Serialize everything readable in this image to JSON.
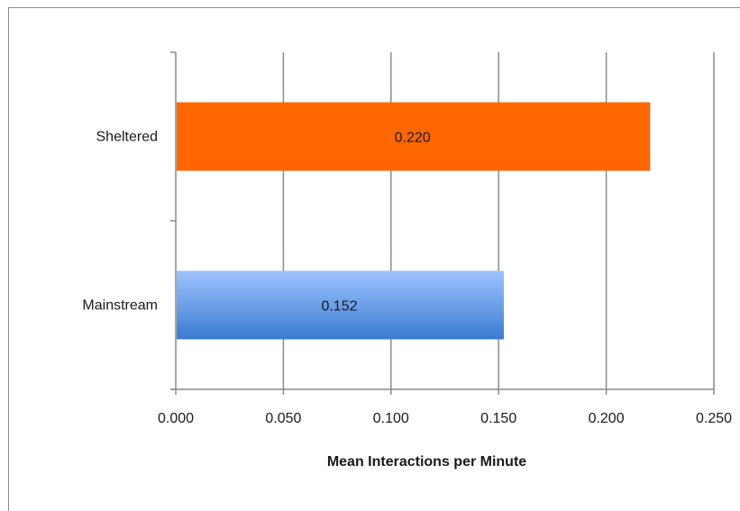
{
  "chart_data": {
    "type": "bar",
    "orientation": "horizontal",
    "categories": [
      "Sheltered",
      "Mainstream"
    ],
    "values": [
      0.22,
      0.152
    ],
    "data_labels": [
      "0.220",
      "0.152"
    ],
    "xlabel": "Mean Interactions per Minute",
    "ylabel": "",
    "xlim": [
      0,
      0.25
    ],
    "x_ticks": [
      "0.000",
      "0.050",
      "0.100",
      "0.150",
      "0.200",
      "0.250"
    ],
    "grid": "vertical",
    "legend": "none",
    "colors": {
      "Sheltered": "#ff6600",
      "Mainstream_top": "#9ec4ff",
      "Mainstream_bottom": "#3a7bd0",
      "grid": "#8a8a8a",
      "axis": "#8a8a8a"
    }
  }
}
